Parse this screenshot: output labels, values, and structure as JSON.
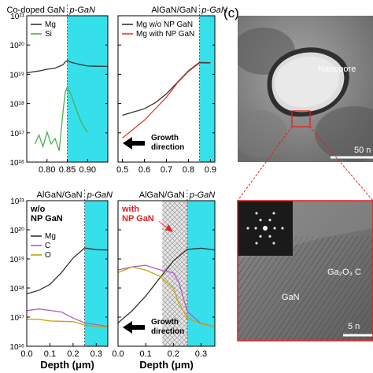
{
  "chart_data": [
    {
      "id": "p1",
      "type": "line",
      "region_labels": {
        "left": "Co-doped GaN",
        "right": "p-GaN"
      },
      "xlim": [
        0.75,
        0.95
      ],
      "xticks": [
        0.8,
        0.85,
        0.9
      ],
      "xtick_labels": [
        "0.80",
        "0.85",
        "0.90"
      ],
      "ylog": true,
      "ylim": [
        16,
        21
      ],
      "ytick_labels": [
        "10¹⁶",
        "10¹⁷",
        "10¹⁸",
        "10¹⁹",
        "10²⁰",
        "10²¹"
      ],
      "shade": [
        0.85,
        0.95
      ],
      "legend": "top-left",
      "series": [
        {
          "name": "Mg",
          "color": "#333333",
          "x": [
            0.75,
            0.78,
            0.8,
            0.82,
            0.84,
            0.845,
            0.85,
            0.86,
            0.88,
            0.9,
            0.92,
            0.95
          ],
          "y": [
            19.05,
            19.1,
            19.15,
            19.18,
            19.3,
            19.4,
            19.45,
            19.4,
            19.35,
            19.3,
            19.3,
            19.3
          ]
        },
        {
          "name": "Si",
          "color": "#4caf50",
          "x": [
            0.77,
            0.78,
            0.79,
            0.8,
            0.81,
            0.82,
            0.83,
            0.835,
            0.84,
            0.845,
            0.85,
            0.86,
            0.87,
            0.88,
            0.89,
            0.9
          ],
          "y": [
            16.6,
            16.9,
            16.5,
            17.0,
            16.6,
            16.8,
            16.4,
            17.1,
            17.8,
            18.4,
            18.6,
            18.3,
            17.9,
            17.5,
            17.2,
            17.0
          ]
        }
      ]
    },
    {
      "id": "p2",
      "type": "line",
      "region_labels": {
        "left": "AlGaN/GaN",
        "right": "p-GaN"
      },
      "xlim": [
        0.48,
        0.92
      ],
      "xticks": [
        0.5,
        0.6,
        0.7,
        0.8,
        0.9
      ],
      "xtick_labels": [
        "0.5",
        "0.6",
        "0.7",
        "0.8",
        "0.9"
      ],
      "ylog": true,
      "ylim": [
        16,
        21
      ],
      "shade": [
        0.85,
        0.92
      ],
      "legend": "top-left",
      "annotation": [
        "Growth",
        "direction"
      ],
      "series": [
        {
          "name": "Mg w/o NP GaN",
          "color": "#333333",
          "x": [
            0.5,
            0.55,
            0.6,
            0.65,
            0.7,
            0.75,
            0.8,
            0.85,
            0.9
          ],
          "y": [
            17.6,
            17.7,
            17.8,
            18.0,
            18.3,
            18.7,
            19.1,
            19.4,
            19.4
          ]
        },
        {
          "name": "Mg with NP GaN",
          "color": "#e53935",
          "x": [
            0.5,
            0.55,
            0.6,
            0.65,
            0.7,
            0.75,
            0.8,
            0.85,
            0.9
          ],
          "y": [
            16.8,
            17.1,
            17.4,
            17.8,
            18.2,
            18.7,
            19.1,
            19.4,
            19.4
          ]
        }
      ]
    },
    {
      "id": "p3",
      "type": "line",
      "region_labels": {
        "left": "AlGaN/GaN",
        "right": "p-GaN"
      },
      "title": [
        "w/o",
        "NP GaN"
      ],
      "xlim": [
        0.0,
        0.35
      ],
      "xticks": [
        0.0,
        0.1,
        0.2,
        0.3
      ],
      "xtick_labels": [
        "0.0",
        "0.1",
        "0.2",
        "0.3"
      ],
      "xlabel": "Depth (μm)",
      "ylog": true,
      "ylim": [
        16,
        21
      ],
      "ytick_labels": [
        "10¹⁶",
        "10¹⁷",
        "10¹⁸",
        "10¹⁹",
        "10²⁰",
        "10²¹"
      ],
      "shade": [
        0.25,
        0.35
      ],
      "legend": "middle-left",
      "series": [
        {
          "name": "Mg",
          "color": "#333333",
          "x": [
            0.0,
            0.05,
            0.1,
            0.15,
            0.2,
            0.25,
            0.3,
            0.35
          ],
          "y": [
            17.8,
            17.9,
            18.1,
            18.5,
            19.0,
            19.35,
            19.3,
            19.3
          ]
        },
        {
          "name": "C",
          "color": "#b05cc6",
          "x": [
            0.0,
            0.05,
            0.1,
            0.15,
            0.2,
            0.25,
            0.3,
            0.35
          ],
          "y": [
            17.2,
            17.25,
            17.2,
            17.15,
            16.95,
            16.8,
            16.75,
            16.7
          ]
        },
        {
          "name": "O",
          "color": "#c8a200",
          "x": [
            0.0,
            0.05,
            0.1,
            0.15,
            0.2,
            0.25,
            0.3,
            0.35
          ],
          "y": [
            16.9,
            16.9,
            16.85,
            16.85,
            16.85,
            16.75,
            16.7,
            16.7
          ]
        }
      ]
    },
    {
      "id": "p4",
      "type": "line",
      "region_labels": {
        "left": "AlGaN/GaN",
        "right": "p-GaN"
      },
      "title": [
        "with",
        "NP GaN"
      ],
      "xlim": [
        0.0,
        0.35
      ],
      "xticks": [
        0.0,
        0.1,
        0.2,
        0.3
      ],
      "xtick_labels": [
        "0.0",
        "0.1",
        "0.2",
        "0.3"
      ],
      "xlabel": "Depth (μm)",
      "ylog": true,
      "ylim": [
        16,
        21
      ],
      "shade": [
        0.25,
        0.35
      ],
      "hatch": [
        0.16,
        0.25
      ],
      "annotation": [
        "Growth",
        "direction"
      ],
      "series": [
        {
          "name": "Mg",
          "color": "#333333",
          "x": [
            0.0,
            0.05,
            0.1,
            0.15,
            0.2,
            0.25,
            0.3,
            0.35
          ],
          "y": [
            16.8,
            17.2,
            17.7,
            18.3,
            18.9,
            19.3,
            19.35,
            19.3
          ]
        },
        {
          "name": "C",
          "color": "#b05cc6",
          "x": [
            0.0,
            0.05,
            0.1,
            0.15,
            0.2,
            0.22,
            0.25,
            0.3,
            0.35
          ],
          "y": [
            18.6,
            18.7,
            18.75,
            18.6,
            18.5,
            18.2,
            17.2,
            16.8,
            16.7
          ]
        },
        {
          "name": "O",
          "color": "#c8a200",
          "x": [
            0.0,
            0.05,
            0.1,
            0.15,
            0.2,
            0.22,
            0.25,
            0.3,
            0.35
          ],
          "y": [
            18.5,
            18.7,
            18.6,
            18.4,
            18.0,
            17.5,
            17.0,
            16.8,
            16.7
          ]
        }
      ]
    }
  ],
  "panel_c": {
    "label": "(c)",
    "top_image": {
      "label": "Nanopore",
      "scale_bar": "50 n"
    },
    "bottom_image": {
      "label_gan": "GaN",
      "label_oxide": "Ga₂O₃ C",
      "scale_bar": "5 n"
    }
  }
}
